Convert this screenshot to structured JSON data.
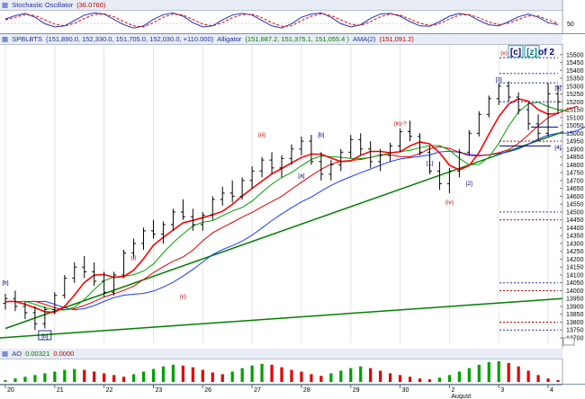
{
  "stoch": {
    "title": "Stochastic Oscillator",
    "value": "(36.0760)",
    "right_label": "50"
  },
  "main": {
    "symbol": "SPBLBTS",
    "ohlc": "(151,890.0, 152,330.0, 151,705.0, 152,030.0, +110.000)",
    "alligator_label": "Alligator",
    "alligator_values": "(151,687.2, 151,375.1, 151,055.4 )",
    "ama_label": "AMA(2)",
    "ama_value": "(151,091.2)"
  },
  "ao": {
    "title": "AO",
    "value1": "0.00321",
    "value2": "0.0000"
  },
  "colors": {
    "bars": "#000000",
    "jaw": "#1a3cff",
    "teeth": "#e00000",
    "lips": "#00a000",
    "trendline": "#008000",
    "wave_blue": "#000080",
    "wave_red": "#c00000",
    "ao_up": "#00a000",
    "ao_down": "#e00000"
  },
  "chart_data": [
    {
      "type": "line",
      "name": "Stochastic Oscillator",
      "y_tick": 50,
      "k": [
        62,
        78,
        88,
        70,
        40,
        25,
        30,
        55,
        80,
        90,
        85,
        60,
        35,
        20,
        30,
        60,
        82,
        90,
        75,
        45,
        25,
        30,
        58,
        80,
        88,
        80,
        55,
        30,
        20,
        40,
        70,
        85,
        90,
        70,
        40,
        25,
        35,
        65,
        85,
        88,
        75,
        50,
        30,
        28,
        50,
        75,
        88,
        80,
        55,
        35,
        30,
        50,
        72,
        85,
        70,
        45,
        36
      ],
      "d": [
        58,
        70,
        82,
        78,
        58,
        38,
        30,
        42,
        65,
        82,
        86,
        72,
        50,
        30,
        25,
        45,
        70,
        85,
        80,
        60,
        38,
        30,
        45,
        68,
        82,
        84,
        68,
        45,
        28,
        30,
        55,
        75,
        86,
        78,
        58,
        38,
        32,
        50,
        72,
        85,
        80,
        62,
        42,
        32,
        40,
        62,
        80,
        82,
        68,
        48,
        36,
        42,
        60,
        76,
        76,
        58,
        42
      ]
    },
    {
      "type": "candlestick",
      "y_ticks": [
        13700,
        13750,
        13800,
        13850,
        13900,
        13950,
        14000,
        14050,
        14100,
        14150,
        14200,
        14250,
        14300,
        14350,
        14400,
        14450,
        14500,
        14550,
        14600,
        14650,
        14700,
        14750,
        14800,
        14850,
        14900,
        14950,
        15000,
        15050,
        15100,
        15150,
        15200,
        15250,
        15300,
        15350,
        15400,
        15450,
        15500
      ],
      "y_range": [
        13700,
        15550
      ],
      "x_labels": [
        "20",
        "21",
        "22",
        "23",
        "26",
        "27",
        "28",
        "29",
        "30",
        "2",
        "3",
        "4"
      ],
      "x_sublabel": "August",
      "ohlc": [
        [
          13920,
          13980,
          13880,
          13950
        ],
        [
          13950,
          14000,
          13870,
          13900
        ],
        [
          13900,
          13930,
          13820,
          13860
        ],
        [
          13860,
          13900,
          13750,
          13790
        ],
        [
          13790,
          13900,
          13760,
          13880
        ],
        [
          13880,
          13990,
          13850,
          13970
        ],
        [
          13970,
          14100,
          13950,
          14080
        ],
        [
          14080,
          14180,
          14050,
          14150
        ],
        [
          14150,
          14220,
          14080,
          14120
        ],
        [
          14120,
          14180,
          14030,
          14060
        ],
        [
          14060,
          14120,
          13960,
          13990
        ],
        [
          13990,
          14120,
          13970,
          14100
        ],
        [
          14100,
          14260,
          14080,
          14240
        ],
        [
          14240,
          14330,
          14200,
          14300
        ],
        [
          14300,
          14400,
          14260,
          14380
        ],
        [
          14380,
          14450,
          14330,
          14360
        ],
        [
          14360,
          14440,
          14300,
          14420
        ],
        [
          14420,
          14520,
          14380,
          14500
        ],
        [
          14500,
          14580,
          14450,
          14470
        ],
        [
          14470,
          14520,
          14380,
          14420
        ],
        [
          14420,
          14500,
          14380,
          14480
        ],
        [
          14480,
          14600,
          14450,
          14580
        ],
        [
          14580,
          14660,
          14540,
          14620
        ],
        [
          14620,
          14700,
          14560,
          14600
        ],
        [
          14600,
          14720,
          14580,
          14700
        ],
        [
          14700,
          14790,
          14650,
          14760
        ],
        [
          14760,
          14850,
          14720,
          14830
        ],
        [
          14830,
          14880,
          14740,
          14780
        ],
        [
          14780,
          14860,
          14720,
          14840
        ],
        [
          14840,
          14930,
          14800,
          14900
        ],
        [
          14900,
          14980,
          14860,
          14950
        ],
        [
          14950,
          14990,
          14800,
          14820
        ],
        [
          14820,
          14880,
          14700,
          14740
        ],
        [
          14740,
          14830,
          14700,
          14800
        ],
        [
          14800,
          14900,
          14760,
          14880
        ],
        [
          14880,
          14990,
          14840,
          14960
        ],
        [
          14960,
          15000,
          14860,
          14900
        ],
        [
          14900,
          14950,
          14780,
          14820
        ],
        [
          14820,
          14900,
          14760,
          14860
        ],
        [
          14860,
          14940,
          14820,
          14920
        ],
        [
          14920,
          15030,
          14880,
          15010
        ],
        [
          15010,
          15080,
          14950,
          14980
        ],
        [
          14980,
          15000,
          14860,
          14880
        ],
        [
          14880,
          14920,
          14740,
          14760
        ],
        [
          14760,
          14820,
          14640,
          14680
        ],
        [
          14680,
          14780,
          14620,
          14760
        ],
        [
          14760,
          14900,
          14720,
          14880
        ],
        [
          14880,
          15020,
          14860,
          15000
        ],
        [
          15000,
          15140,
          14980,
          15120
        ],
        [
          15120,
          15240,
          15100,
          15220
        ],
        [
          15220,
          15320,
          15180,
          15300
        ],
        [
          15300,
          15330,
          15200,
          15230
        ],
        [
          15230,
          15260,
          15120,
          15150
        ],
        [
          15150,
          15200,
          15020,
          15060
        ],
        [
          15060,
          15120,
          14950,
          15000
        ],
        [
          15000,
          15320,
          14980,
          15250
        ],
        [
          15250,
          15300,
          15120,
          15200
        ]
      ]
    },
    {
      "type": "bar",
      "name": "AO",
      "values": [
        2,
        4,
        6,
        8,
        10,
        12,
        14,
        15,
        14,
        12,
        10,
        8,
        6,
        9,
        12,
        15,
        18,
        20,
        19,
        17,
        14,
        11,
        9,
        12,
        16,
        19,
        21,
        20,
        17,
        14,
        12,
        9,
        7,
        10,
        13,
        16,
        18,
        16,
        13,
        10,
        8,
        6,
        4,
        3,
        5,
        8,
        12,
        16,
        20,
        23,
        24,
        22,
        18,
        13,
        8,
        4,
        2
      ],
      "colors_up_down": true
    }
  ],
  "annotations": {
    "wave_labels": [
      {
        "text": "[b]",
        "color": "blue"
      },
      {
        "text": "[b]",
        "color": "blue"
      },
      {
        "text": "(i)",
        "color": "red"
      },
      {
        "text": "(ii)",
        "color": "red"
      },
      {
        "text": "(iii)",
        "color": "red"
      },
      {
        "text": "[a]",
        "color": "blue"
      },
      {
        "text": "[b]",
        "color": "blue"
      },
      {
        "text": "(iii)-?",
        "color": "red"
      },
      {
        "text": "[1]",
        "color": "blue"
      },
      {
        "text": "[2]",
        "color": "blue"
      },
      {
        "text": "(iv)",
        "color": "red"
      },
      {
        "text": "[3]",
        "color": "blue"
      },
      {
        "text": "[4]",
        "color": "blue"
      },
      {
        "text": "[5]",
        "color": "blue"
      },
      {
        "text": "(v)",
        "color": "red"
      },
      {
        "text": "[c]",
        "color": "blue"
      },
      {
        "text": "[z]",
        "color": "blue"
      },
      {
        "text": "of 2",
        "color": "blue"
      }
    ]
  }
}
